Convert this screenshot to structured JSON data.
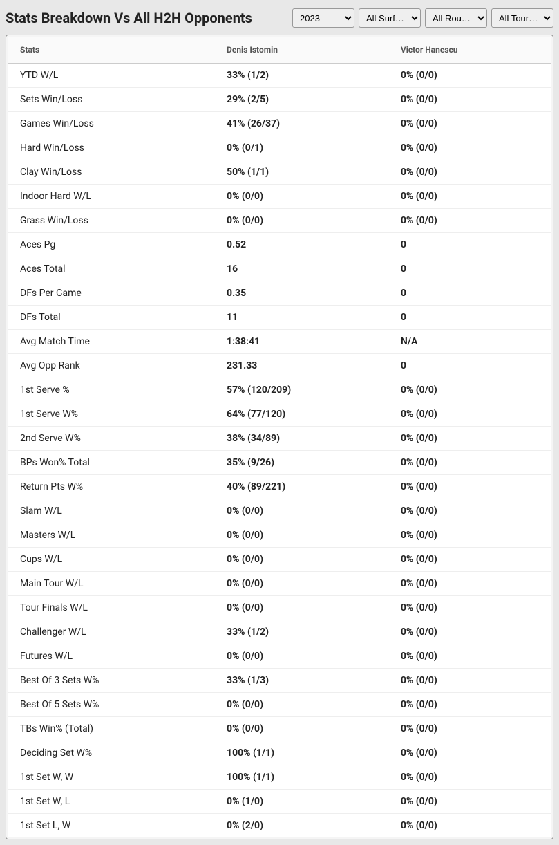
{
  "title": "Stats Breakdown Vs All H2H Opponents",
  "filters": {
    "year": "2023",
    "surface": "All Surf…",
    "round": "All Rou…",
    "tournament": "All Tour…"
  },
  "columns": {
    "stats": "Stats",
    "player1": "Denis Istomin",
    "player2": "Victor Hanescu"
  },
  "rows": [
    {
      "stat": "YTD W/L",
      "p1": "33% (1/2)",
      "p2": "0% (0/0)"
    },
    {
      "stat": "Sets Win/Loss",
      "p1": "29% (2/5)",
      "p2": "0% (0/0)"
    },
    {
      "stat": "Games Win/Loss",
      "p1": "41% (26/37)",
      "p2": "0% (0/0)"
    },
    {
      "stat": "Hard Win/Loss",
      "p1": "0% (0/1)",
      "p2": "0% (0/0)"
    },
    {
      "stat": "Clay Win/Loss",
      "p1": "50% (1/1)",
      "p2": "0% (0/0)"
    },
    {
      "stat": "Indoor Hard W/L",
      "p1": "0% (0/0)",
      "p2": "0% (0/0)"
    },
    {
      "stat": "Grass Win/Loss",
      "p1": "0% (0/0)",
      "p2": "0% (0/0)"
    },
    {
      "stat": "Aces Pg",
      "p1": "0.52",
      "p2": "0"
    },
    {
      "stat": "Aces Total",
      "p1": "16",
      "p2": "0"
    },
    {
      "stat": "DFs Per Game",
      "p1": "0.35",
      "p2": "0"
    },
    {
      "stat": "DFs Total",
      "p1": "11",
      "p2": "0"
    },
    {
      "stat": "Avg Match Time",
      "p1": "1:38:41",
      "p2": "N/A"
    },
    {
      "stat": "Avg Opp Rank",
      "p1": "231.33",
      "p2": "0"
    },
    {
      "stat": "1st Serve %",
      "p1": "57% (120/209)",
      "p2": "0% (0/0)"
    },
    {
      "stat": "1st Serve W%",
      "p1": "64% (77/120)",
      "p2": "0% (0/0)"
    },
    {
      "stat": "2nd Serve W%",
      "p1": "38% (34/89)",
      "p2": "0% (0/0)"
    },
    {
      "stat": "BPs Won% Total",
      "p1": "35% (9/26)",
      "p2": "0% (0/0)"
    },
    {
      "stat": "Return Pts W%",
      "p1": "40% (89/221)",
      "p2": "0% (0/0)"
    },
    {
      "stat": "Slam W/L",
      "p1": "0% (0/0)",
      "p2": "0% (0/0)"
    },
    {
      "stat": "Masters W/L",
      "p1": "0% (0/0)",
      "p2": "0% (0/0)"
    },
    {
      "stat": "Cups W/L",
      "p1": "0% (0/0)",
      "p2": "0% (0/0)"
    },
    {
      "stat": "Main Tour W/L",
      "p1": "0% (0/0)",
      "p2": "0% (0/0)"
    },
    {
      "stat": "Tour Finals W/L",
      "p1": "0% (0/0)",
      "p2": "0% (0/0)"
    },
    {
      "stat": "Challenger W/L",
      "p1": "33% (1/2)",
      "p2": "0% (0/0)"
    },
    {
      "stat": "Futures W/L",
      "p1": "0% (0/0)",
      "p2": "0% (0/0)"
    },
    {
      "stat": "Best Of 3 Sets W%",
      "p1": "33% (1/3)",
      "p2": "0% (0/0)"
    },
    {
      "stat": "Best Of 5 Sets W%",
      "p1": "0% (0/0)",
      "p2": "0% (0/0)"
    },
    {
      "stat": "TBs Win% (Total)",
      "p1": "0% (0/0)",
      "p2": "0% (0/0)"
    },
    {
      "stat": "Deciding Set W%",
      "p1": "100% (1/1)",
      "p2": "0% (0/0)"
    },
    {
      "stat": "1st Set W, W",
      "p1": "100% (1/1)",
      "p2": "0% (0/0)"
    },
    {
      "stat": "1st Set W, L",
      "p1": "0% (1/0)",
      "p2": "0% (0/0)"
    },
    {
      "stat": "1st Set L, W",
      "p1": "0% (2/0)",
      "p2": "0% (0/0)"
    }
  ]
}
